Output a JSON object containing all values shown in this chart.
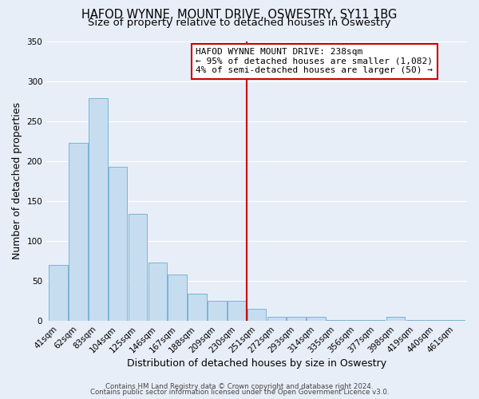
{
  "title": "HAFOD WYNNE, MOUNT DRIVE, OSWESTRY, SY11 1BG",
  "subtitle": "Size of property relative to detached houses in Oswestry",
  "xlabel": "Distribution of detached houses by size in Oswestry",
  "ylabel": "Number of detached properties",
  "footer_line1": "Contains HM Land Registry data © Crown copyright and database right 2024.",
  "footer_line2": "Contains public sector information licensed under the Open Government Licence v3.0.",
  "bar_labels": [
    "41sqm",
    "62sqm",
    "83sqm",
    "104sqm",
    "125sqm",
    "146sqm",
    "167sqm",
    "188sqm",
    "209sqm",
    "230sqm",
    "251sqm",
    "272sqm",
    "293sqm",
    "314sqm",
    "335sqm",
    "356sqm",
    "377sqm",
    "398sqm",
    "419sqm",
    "440sqm",
    "461sqm"
  ],
  "bar_values": [
    70,
    223,
    279,
    193,
    134,
    73,
    58,
    34,
    25,
    25,
    15,
    5,
    5,
    5,
    1,
    1,
    1,
    5,
    1,
    1,
    1
  ],
  "bar_color": "#c6ddf0",
  "bar_edge_color": "#7ab3d4",
  "vline_x": 9.5,
  "vline_color": "#cc0000",
  "annotation_line1": "HAFOD WYNNE MOUNT DRIVE: 238sqm",
  "annotation_line2": "← 95% of detached houses are smaller (1,082)",
  "annotation_line3": "4% of semi-detached houses are larger (50) →",
  "ylim": [
    0,
    350
  ],
  "yticks": [
    0,
    50,
    100,
    150,
    200,
    250,
    300,
    350
  ],
  "background_color": "#e8eef8",
  "grid_color": "#ffffff",
  "title_fontsize": 10.5,
  "subtitle_fontsize": 9.5,
  "axis_label_fontsize": 9,
  "tick_fontsize": 7.5,
  "annotation_fontsize": 8,
  "footer_fontsize": 6.2
}
